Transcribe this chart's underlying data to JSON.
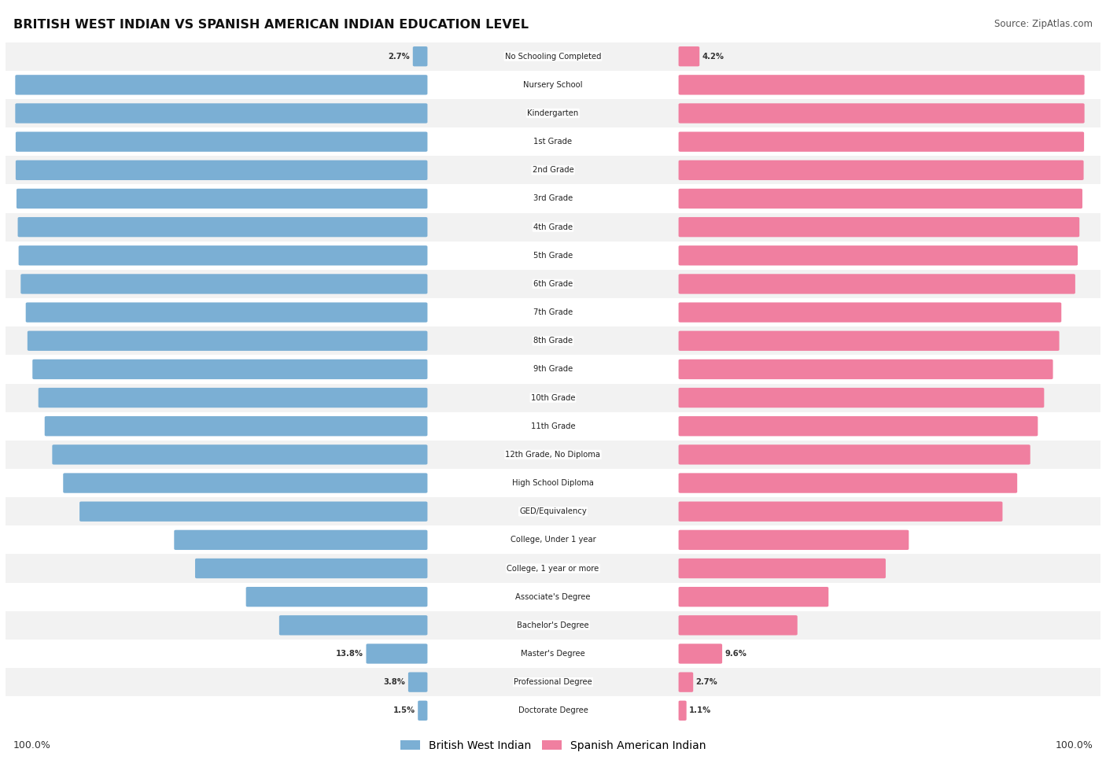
{
  "title": "BRITISH WEST INDIAN VS SPANISH AMERICAN INDIAN EDUCATION LEVEL",
  "source": "Source: ZipAtlas.com",
  "categories": [
    "No Schooling Completed",
    "Nursery School",
    "Kindergarten",
    "1st Grade",
    "2nd Grade",
    "3rd Grade",
    "4th Grade",
    "5th Grade",
    "6th Grade",
    "7th Grade",
    "8th Grade",
    "9th Grade",
    "10th Grade",
    "11th Grade",
    "12th Grade, No Diploma",
    "High School Diploma",
    "GED/Equivalency",
    "College, Under 1 year",
    "College, 1 year or more",
    "Associate's Degree",
    "Bachelor's Degree",
    "Master's Degree",
    "Professional Degree",
    "Doctorate Degree"
  ],
  "british": [
    2.7,
    97.3,
    97.3,
    97.2,
    97.2,
    97.0,
    96.7,
    96.5,
    96.0,
    94.8,
    94.4,
    93.2,
    91.8,
    90.3,
    88.5,
    85.9,
    82.0,
    59.5,
    54.5,
    42.4,
    34.5,
    13.8,
    3.8,
    1.5
  ],
  "spanish": [
    4.2,
    95.8,
    95.8,
    95.7,
    95.6,
    95.3,
    94.6,
    94.2,
    93.6,
    90.3,
    89.8,
    88.3,
    86.2,
    84.7,
    82.9,
    79.8,
    76.3,
    54.0,
    48.5,
    34.9,
    27.5,
    9.6,
    2.7,
    1.1
  ],
  "british_color": "#7BAFD4",
  "spanish_color": "#F07FA0",
  "row_bg_even": "#F2F2F2",
  "row_bg_odd": "#FFFFFF",
  "legend_british": "British West Indian",
  "legend_spanish": "Spanish American Indian"
}
